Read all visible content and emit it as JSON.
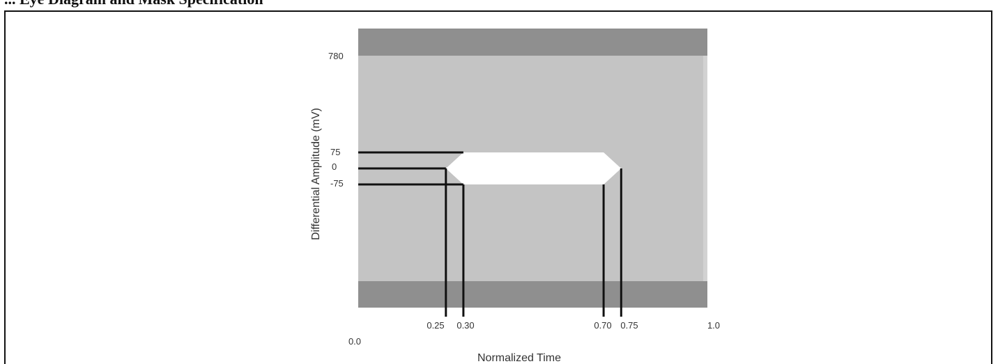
{
  "header": {
    "text": "... Eye Diagram and Mask Specification"
  },
  "chart_data": {
    "type": "mask",
    "title": "",
    "xlabel": "Normalized Time",
    "ylabel": "Differential Amplitude (mV)",
    "xlim": [
      0.0,
      1.0
    ],
    "x_ticks": [
      "0.25",
      "0.30",
      "0.70",
      "0.75",
      "1.0"
    ],
    "x_origin_label": "0.0",
    "y_ticks": [
      "780",
      "75",
      "0",
      "-75"
    ],
    "mask_polygon": [
      {
        "x": 0.25,
        "y": 0
      },
      {
        "x": 0.3,
        "y": 75
      },
      {
        "x": 0.7,
        "y": 75
      },
      {
        "x": 0.75,
        "y": 0
      },
      {
        "x": 0.7,
        "y": -75
      },
      {
        "x": 0.3,
        "y": -75
      }
    ],
    "amplitude_limit": 780,
    "colors": {
      "outer_band": "#8f8f8f",
      "field": "#c4c4c4",
      "right_strip": "#d2d2d2",
      "mask": "#ffffff",
      "lines": "#111111"
    }
  }
}
